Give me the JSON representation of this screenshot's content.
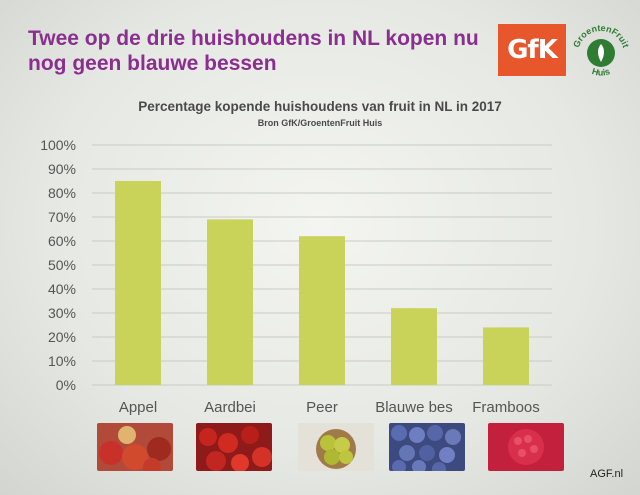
{
  "slide": {
    "title": "Twee op de drie huishoudens in NL kopen nu nog geen blauwe bessen",
    "logo_gfk": "GfK",
    "logo_groentenfruit": "GroentenFruit Huis",
    "credit": "AGF.nl"
  },
  "colors": {
    "title": "#8a2f8f",
    "bar": "#c9d35a",
    "gfk": "#e8562c"
  },
  "chart_data": {
    "type": "bar",
    "title": "Percentage kopende huishoudens van fruit in NL in 2017",
    "subtitle": "Bron GfK/GroentenFruit Huis",
    "categories": [
      "Appel",
      "Aardbei",
      "Peer",
      "Blauwe bes",
      "Framboos"
    ],
    "values": [
      85,
      69,
      62,
      32,
      24
    ],
    "ylim": [
      0,
      100
    ],
    "yticks": [
      "0%",
      "10%",
      "20%",
      "30%",
      "40%",
      "50%",
      "60%",
      "70%",
      "80%",
      "90%",
      "100%"
    ],
    "grid": true,
    "legend": "none"
  }
}
